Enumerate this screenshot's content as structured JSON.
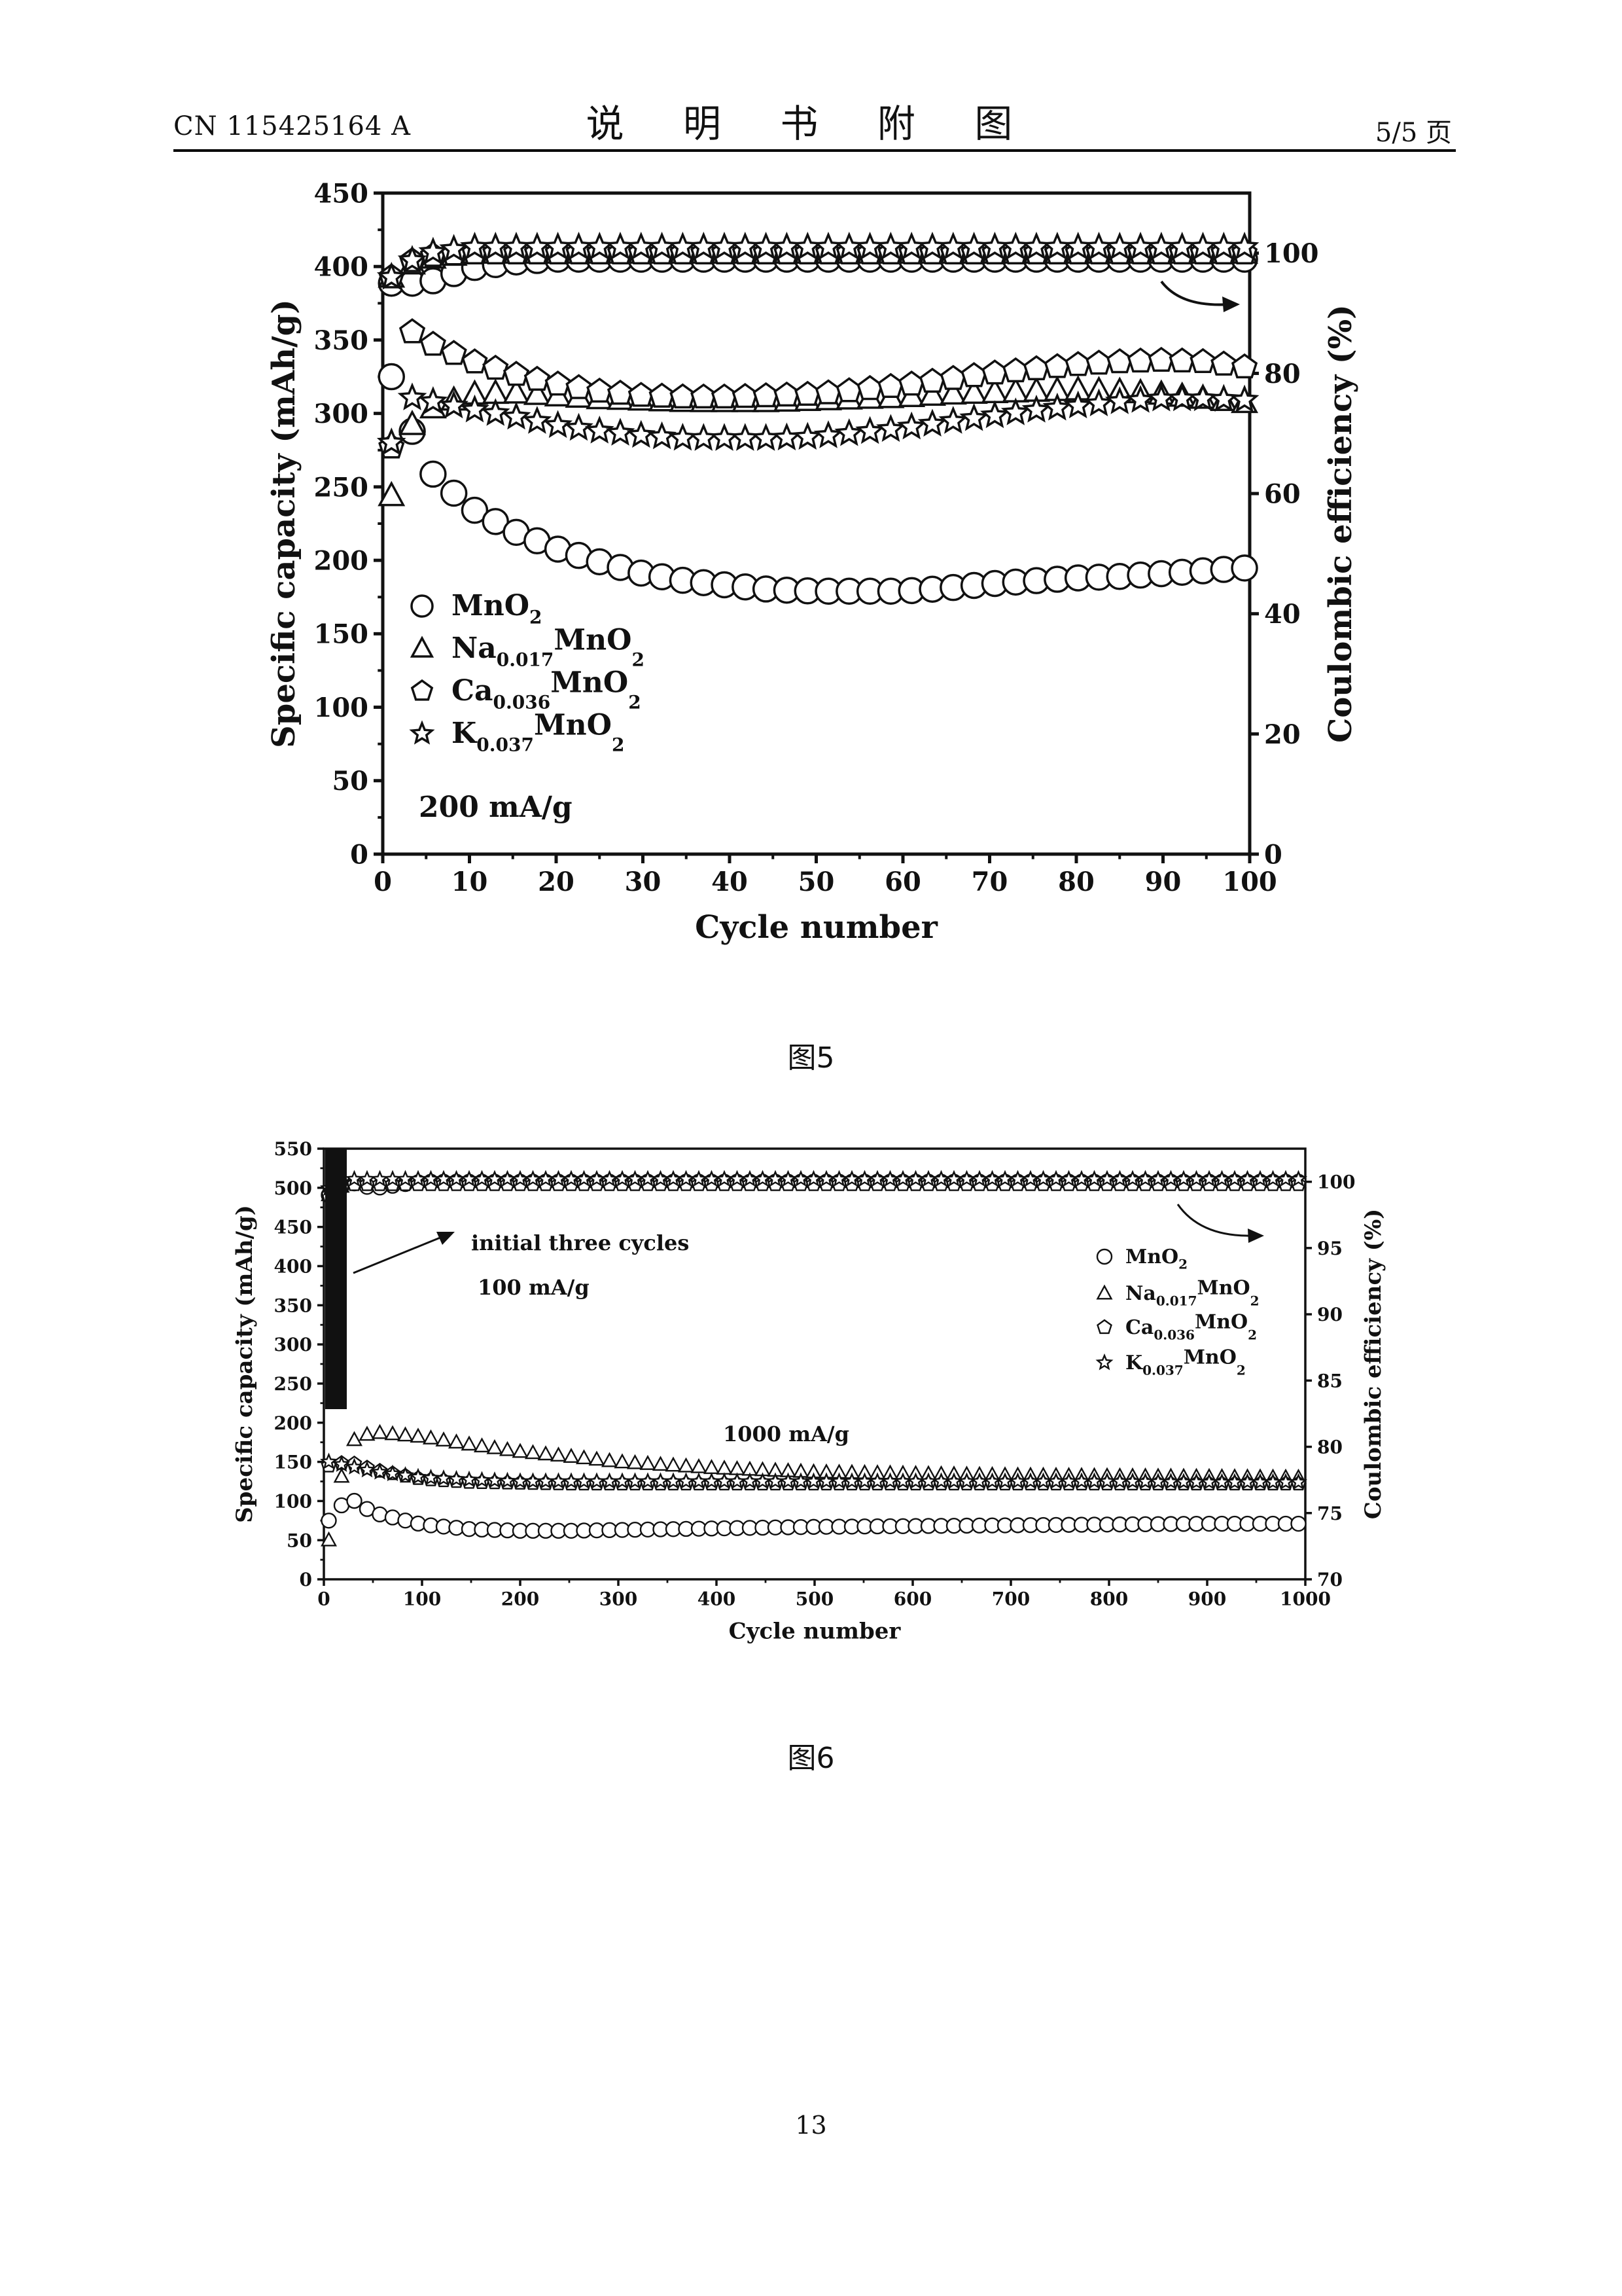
{
  "header": {
    "doc_number": "CN 115425164 A",
    "section_title": "说 明 书 附 图",
    "page_of": "5/5 页"
  },
  "figures": [
    {
      "caption": "图5"
    },
    {
      "caption": "图6"
    }
  ],
  "page_number": "13",
  "chart_data": [
    {
      "type": "scatter",
      "xlabel": "Cycle number",
      "ylabel": "Specific capacity (mAh/g)",
      "y2label": "Coulombic efficiency (%)",
      "xlim": [
        0,
        100
      ],
      "ylim": [
        0,
        450
      ],
      "y2lim": [
        0,
        110
      ],
      "xticks": [
        "0",
        "10",
        "20",
        "30",
        "40",
        "50",
        "60",
        "70",
        "80",
        "90",
        "100"
      ],
      "yticks": [
        "0",
        "50",
        "100",
        "150",
        "200",
        "250",
        "300",
        "350",
        "400",
        "450"
      ],
      "y2ticks": [
        "0",
        "20",
        "40",
        "60",
        "80",
        "100"
      ],
      "annotation": "200 mA/g",
      "legend_position": "bottom-left",
      "series": [
        {
          "name": "MnO2",
          "label_base": "MnO",
          "label_sub": "2",
          "label_mid": "",
          "label_tail": "",
          "marker": "circle",
          "x": [
            1,
            5,
            10,
            15,
            20,
            25,
            30,
            35,
            40,
            45,
            50,
            55,
            60,
            65,
            70,
            75,
            80,
            85,
            90,
            95,
            100
          ],
          "values": [
            325,
            263,
            236,
            220,
            208,
            199,
            191,
            186,
            183,
            180,
            179,
            179,
            179,
            181,
            184,
            186,
            188,
            189,
            191,
            193,
            195
          ],
          "efficiency": [
            95,
            95,
            97.5,
            98.5,
            99,
            99,
            99,
            99,
            99,
            99,
            99,
            99,
            99,
            99,
            99,
            99,
            99,
            99,
            99,
            99,
            99
          ]
        },
        {
          "name": "Na0.017MnO2",
          "label_base": "Na",
          "label_sub": "0.017",
          "label_mid": "MnO",
          "label_tail": "2",
          "marker": "triangle",
          "x": [
            1,
            3,
            5,
            10,
            15,
            20,
            25,
            30,
            35,
            40,
            45,
            50,
            55,
            60,
            65,
            70,
            75,
            80,
            85,
            90,
            95,
            100
          ],
          "values": [
            244,
            290,
            302,
            313,
            314,
            312,
            310,
            309,
            308,
            308,
            308,
            309,
            310,
            311,
            313,
            314,
            315,
            316,
            315,
            313,
            310,
            307
          ],
          "efficiency": [
            96,
            98,
            99,
            100,
            100,
            100,
            100,
            100,
            100,
            100,
            100,
            100,
            100,
            100,
            100,
            100,
            100,
            100,
            100,
            100,
            100,
            100
          ]
        },
        {
          "name": "Ca0.036MnO2",
          "label_base": "Ca",
          "label_sub": "0.036",
          "label_mid": "MnO",
          "label_tail": "2",
          "marker": "pentagon",
          "x": [
            1,
            3,
            5,
            10,
            15,
            20,
            25,
            30,
            35,
            40,
            45,
            50,
            55,
            60,
            65,
            70,
            75,
            80,
            85,
            90,
            95,
            100
          ],
          "values": [
            277,
            357,
            349,
            336,
            327,
            320,
            315,
            312,
            311,
            311,
            312,
            313,
            316,
            319,
            323,
            327,
            330,
            333,
            335,
            336,
            335,
            331
          ],
          "efficiency": [
            96,
            98.5,
            99.5,
            100,
            100,
            100,
            100,
            100,
            100,
            100,
            100,
            100,
            100,
            100,
            100,
            100,
            100,
            100,
            100,
            100,
            100,
            100
          ]
        },
        {
          "name": "K0.037MnO2",
          "label_base": "K",
          "label_sub": "0.037",
          "label_mid": "MnO",
          "label_tail": "2",
          "marker": "star",
          "x": [
            1,
            3,
            5,
            10,
            15,
            20,
            25,
            30,
            35,
            40,
            45,
            50,
            55,
            60,
            65,
            70,
            75,
            80,
            85,
            90,
            95,
            100
          ],
          "values": [
            280,
            311,
            309,
            303,
            298,
            292,
            288,
            285,
            283,
            283,
            283,
            284,
            287,
            290,
            294,
            298,
            302,
            305,
            308,
            310,
            310,
            309
          ],
          "efficiency": [
            96,
            98.5,
            100,
            101,
            101,
            101,
            101,
            101,
            101,
            101,
            101,
            101,
            101,
            101,
            101,
            101,
            101,
            101,
            101,
            101,
            101,
            101
          ]
        }
      ]
    },
    {
      "type": "scatter",
      "xlabel": "Cycle number",
      "ylabel": "Specific capacity (mAh/g)",
      "y2label": "Coulombic efficiency (%)",
      "xlim": [
        0,
        1000
      ],
      "ylim": [
        0,
        550
      ],
      "y2lim": [
        70,
        102.5
      ],
      "xticks": [
        "0",
        "100",
        "200",
        "300",
        "400",
        "500",
        "600",
        "700",
        "800",
        "900",
        "1000"
      ],
      "yticks": [
        "0",
        "50",
        "100",
        "150",
        "200",
        "250",
        "300",
        "350",
        "400",
        "450",
        "500",
        "550"
      ],
      "y2ticks": [
        "70",
        "75",
        "80",
        "85",
        "90",
        "95",
        "100"
      ],
      "annotations": [
        "initial three cycles",
        "100 mA/g",
        "1000 mA/g"
      ],
      "legend_position": "top-right",
      "series": [
        {
          "name": "MnO2",
          "label_base": "MnO",
          "label_sub": "2",
          "label_mid": "",
          "label_tail": "",
          "marker": "circle",
          "x": [
            5,
            25,
            50,
            100,
            150,
            200,
            250,
            300,
            400,
            500,
            600,
            700,
            800,
            900,
            1000
          ],
          "values": [
            75,
            105,
            85,
            70,
            64,
            62,
            62,
            63,
            65,
            67,
            68,
            69,
            70,
            71,
            71
          ],
          "efficiency": [
            99,
            100,
            99.5,
            100,
            100,
            100,
            100,
            100,
            100,
            100,
            100,
            100,
            100,
            100,
            100
          ]
        },
        {
          "name": "Na0.017MnO2",
          "label_base": "Na",
          "label_sub": "0.017",
          "label_mid": "MnO",
          "label_tail": "2",
          "marker": "triangle",
          "x": [
            5,
            25,
            50,
            100,
            150,
            200,
            250,
            300,
            400,
            500,
            600,
            700,
            800,
            900,
            1000
          ],
          "values": [
            50,
            175,
            188,
            182,
            172,
            163,
            157,
            150,
            142,
            137,
            135,
            133,
            132,
            131,
            130
          ],
          "efficiency": [
            99,
            100,
            100,
            100,
            100,
            100,
            100,
            100,
            100,
            100,
            100,
            100,
            100,
            100,
            100
          ]
        },
        {
          "name": "Ca0.036MnO2",
          "label_base": "Ca",
          "label_sub": "0.036",
          "label_mid": "MnO",
          "label_tail": "2",
          "marker": "pentagon",
          "x": [
            5,
            25,
            50,
            100,
            150,
            200,
            250,
            300,
            400,
            500,
            600,
            700,
            800,
            900,
            1000
          ],
          "values": [
            145,
            150,
            140,
            128,
            124,
            123,
            122,
            122,
            122,
            122,
            122,
            122,
            122,
            122,
            122
          ],
          "efficiency": [
            99,
            99.8,
            99.8,
            99.8,
            99.8,
            99.8,
            99.8,
            99.8,
            99.8,
            99.8,
            99.8,
            99.8,
            99.8,
            99.8,
            99.8
          ]
        },
        {
          "name": "K0.037MnO2",
          "label_base": "K",
          "label_sub": "0.037",
          "label_mid": "MnO",
          "label_tail": "2",
          "marker": "star",
          "x": [
            5,
            25,
            50,
            100,
            150,
            200,
            250,
            300,
            400,
            500,
            600,
            700,
            800,
            900,
            1000
          ],
          "values": [
            150,
            145,
            138,
            130,
            127,
            125,
            125,
            125,
            125,
            125,
            125,
            125,
            125,
            124,
            124
          ],
          "efficiency": [
            99.5,
            100.2,
            100.2,
            100.2,
            100.2,
            100.2,
            100.2,
            100.2,
            100.2,
            100.2,
            100.2,
            100.2,
            100.2,
            100.2,
            100.2
          ]
        }
      ]
    }
  ]
}
